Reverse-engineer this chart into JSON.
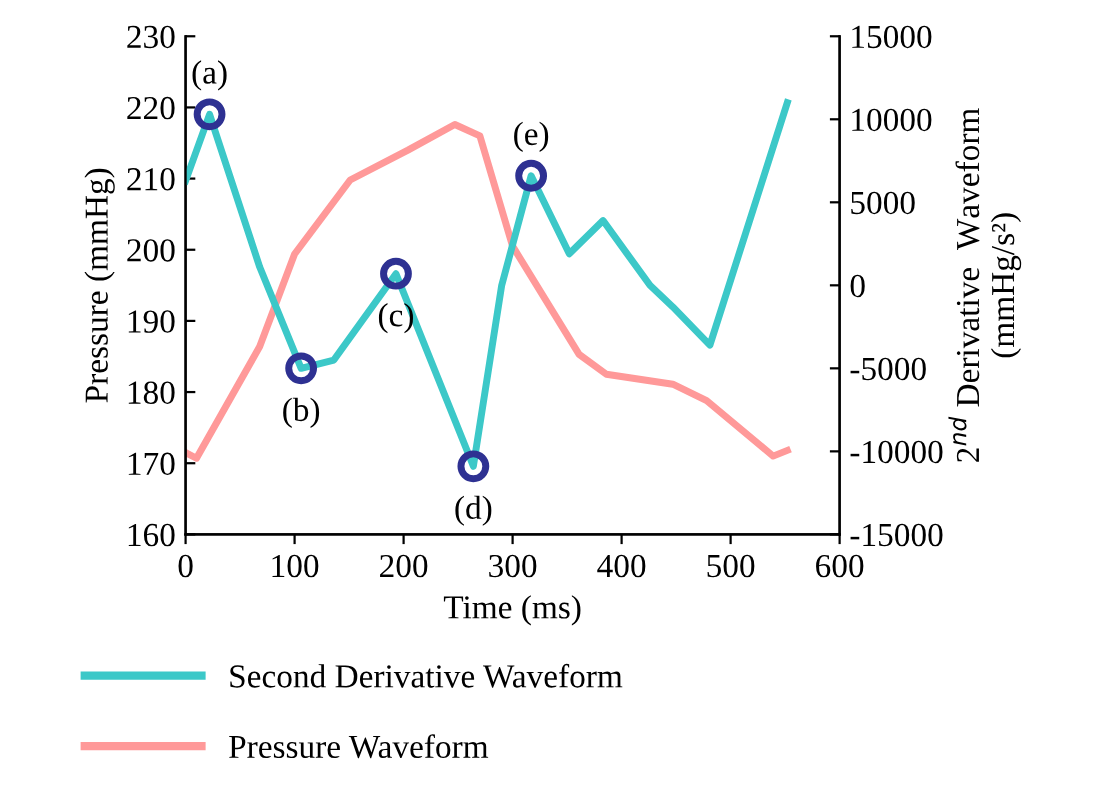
{
  "chart_data": {
    "type": "line",
    "xlabel": "Time (ms)",
    "ylabel": "Pressure (mmHg)",
    "y2label": "2$^{nd}$ Derivative  Waveform\n(mmHg/s²)",
    "xlim": [
      0,
      600
    ],
    "xticks": [
      0,
      100,
      200,
      300,
      400,
      500,
      600
    ],
    "ylim": [
      160,
      230
    ],
    "yticks": [
      160,
      170,
      180,
      190,
      200,
      210,
      220,
      230
    ],
    "y2lim": [
      -15000,
      15000
    ],
    "y2ticks": [
      -15000,
      -10000,
      -5000,
      0,
      5000,
      10000,
      15000
    ],
    "grid": false,
    "legend": "bottom",
    "series": [
      {
        "name": "Second Derivative Waveform",
        "color": "#3cc8c8",
        "axis": "y2",
        "x": [
          0,
          22,
          68,
          106,
          136,
          193,
          264,
          290,
          317,
          352,
          383,
          426,
          447,
          481,
          552
        ],
        "values": [
          6300,
          10300,
          1100,
          -5000,
          -4500,
          700,
          -10900,
          0,
          6600,
          1900,
          3900,
          0,
          -1300,
          -3600,
          11000
        ]
      },
      {
        "name": "Pressure Waveform",
        "color": "#ff9999",
        "x": [
          0,
          10,
          68,
          100,
          151,
          204,
          247,
          270,
          300,
          361,
          386,
          447,
          478,
          539,
          552
        ],
        "values": [
          171.5,
          170.7,
          186.4,
          199.4,
          209.8,
          214,
          217.6,
          216,
          200.5,
          185.3,
          182.5,
          181.1,
          178.8,
          171,
          171.8
        ]
      },
      {
        "type": "scatter",
        "color": "#2e3192",
        "axis": "y2",
        "marker": "circle",
        "x": [
          22,
          106,
          193,
          264,
          317
        ],
        "values": [
          10300,
          -5000,
          700,
          -10900,
          6600
        ]
      }
    ],
    "annotations": [
      "(a)",
      "(b)",
      "(c)",
      "(d)",
      "(e)"
    ]
  }
}
